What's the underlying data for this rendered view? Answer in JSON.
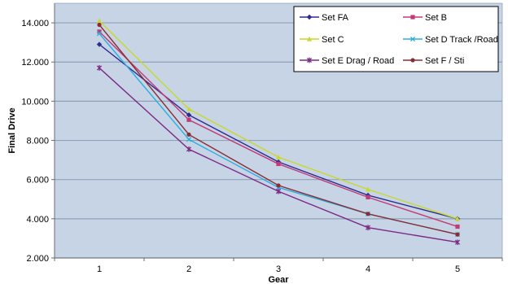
{
  "chart_data": {
    "type": "line",
    "title": "",
    "xlabel": "Gear",
    "ylabel": "Final Drive",
    "categories": [
      "1",
      "2",
      "3",
      "4",
      "5"
    ],
    "ylim": [
      2.0,
      15.0
    ],
    "yticks": [
      "2.000",
      "4.000",
      "6.000",
      "8.000",
      "10.000",
      "12.000",
      "14.000"
    ],
    "ytick_values": [
      2,
      4,
      6,
      8,
      10,
      12,
      14
    ],
    "grid": true,
    "legend_position": "top-right",
    "plot_background": "#c6d4e5",
    "gridline_color": "#8fa2ba",
    "series": [
      {
        "name": "Set FA",
        "color": "#2e2c8f",
        "marker": "diamond",
        "values": [
          12.9,
          9.3,
          6.9,
          5.2,
          4.0
        ]
      },
      {
        "name": "Set B",
        "color": "#c23a76",
        "marker": "square",
        "values": [
          13.55,
          9.05,
          6.8,
          5.1,
          3.6
        ]
      },
      {
        "name": "Set C",
        "color": "#c8d92a",
        "marker": "triangle",
        "values": [
          14.1,
          9.6,
          7.15,
          5.5,
          4.0
        ]
      },
      {
        "name": "Set D Track /Road",
        "color": "#2aaee0",
        "marker": "x",
        "values": [
          13.45,
          8.05,
          5.6,
          4.25,
          3.2
        ]
      },
      {
        "name": "Set E Drag / Road",
        "color": "#7c2a86",
        "marker": "star",
        "values": [
          11.7,
          7.55,
          5.4,
          3.55,
          2.8
        ]
      },
      {
        "name": "Set F / Sti",
        "color": "#8b2c34",
        "marker": "circle",
        "values": [
          13.9,
          8.3,
          5.7,
          4.25,
          3.2
        ]
      }
    ]
  }
}
